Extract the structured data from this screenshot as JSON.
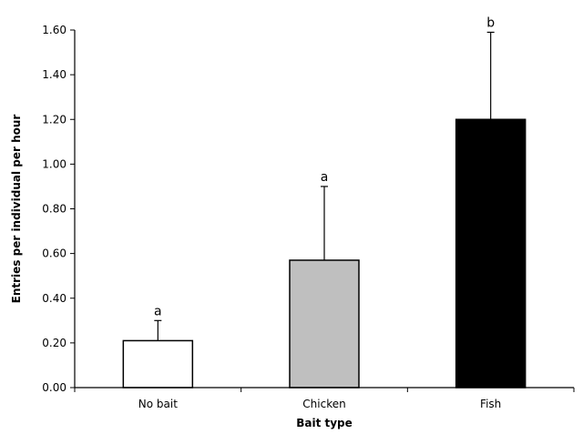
{
  "chart_data": {
    "type": "bar",
    "title": "",
    "xlabel": "Bait type",
    "ylabel": "Entries per individual per hour",
    "categories": [
      "No bait",
      "Chicken",
      "Fish"
    ],
    "values": [
      0.21,
      0.57,
      1.2
    ],
    "error_upper": [
      0.3,
      0.9,
      1.59
    ],
    "significance_labels": [
      "a",
      "a",
      "b"
    ],
    "bar_colors": [
      "#ffffff",
      "#bfbfbf",
      "#000000"
    ],
    "ylim": [
      0,
      1.6
    ],
    "yticks": [
      0.0,
      0.2,
      0.4,
      0.6,
      0.8,
      1.0,
      1.2,
      1.4,
      1.6
    ],
    "ytick_labels": [
      "0.00",
      "0.20",
      "0.40",
      "0.60",
      "0.80",
      "1.00",
      "1.20",
      "1.40",
      "1.60"
    ],
    "grid": false,
    "legend": "none"
  }
}
